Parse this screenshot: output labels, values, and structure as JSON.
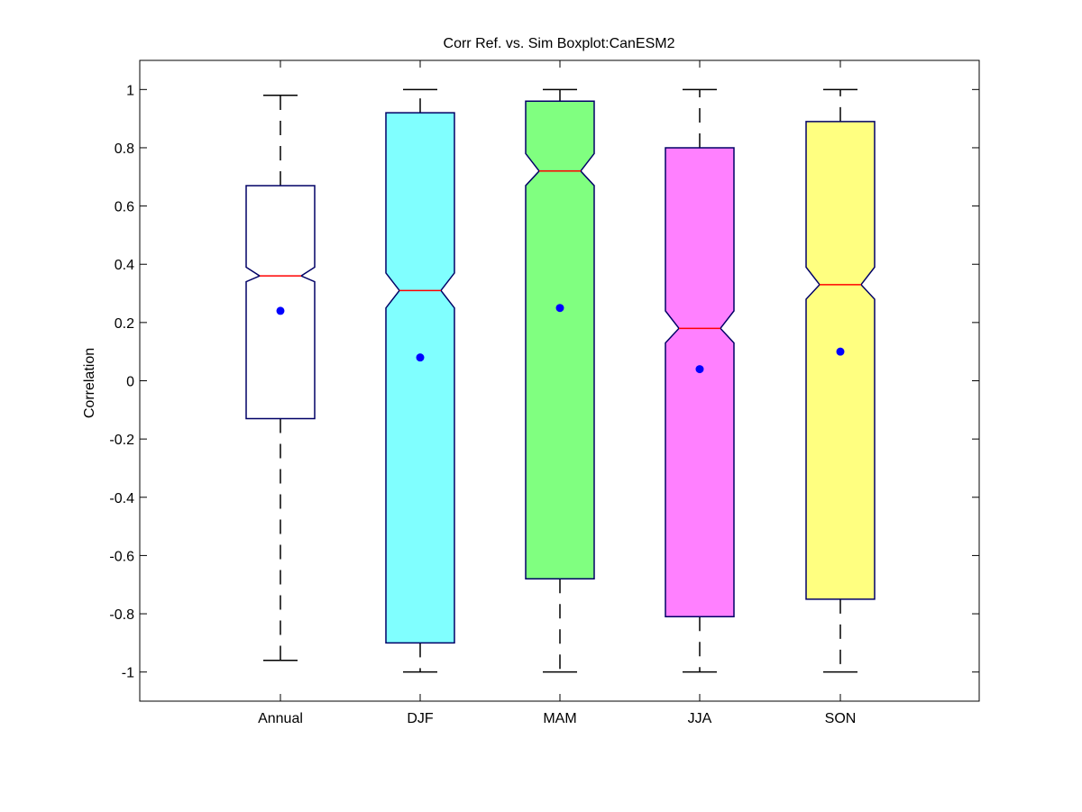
{
  "chart_data": {
    "type": "boxplot",
    "title": "Corr Ref. vs. Sim Boxplot:CanESM2",
    "xlabel": "",
    "ylabel": "Correlation",
    "ylim": [
      -1.1,
      1.1
    ],
    "yticks": [
      -1,
      -0.8,
      -0.6,
      -0.4,
      -0.2,
      0,
      0.2,
      0.4,
      0.6,
      0.8,
      1
    ],
    "ytick_labels": [
      "-1",
      "-0.8",
      "-0.6",
      "-0.4",
      "-0.2",
      "0",
      "0.2",
      "0.4",
      "0.6",
      "0.8",
      "1"
    ],
    "categories": [
      "Annual",
      "DJF",
      "MAM",
      "JJA",
      "SON"
    ],
    "boxes": [
      {
        "category": "Annual",
        "whisker_low": -0.96,
        "q1": -0.13,
        "median": 0.36,
        "q3": 0.67,
        "whisker_high": 0.98,
        "notch_low": 0.34,
        "notch_high": 0.39,
        "mean": 0.24,
        "fill": "#ffffff"
      },
      {
        "category": "DJF",
        "whisker_low": -1.0,
        "q1": -0.9,
        "median": 0.31,
        "q3": 0.92,
        "whisker_high": 1.0,
        "notch_low": 0.25,
        "notch_high": 0.37,
        "mean": 0.08,
        "fill": "#80ffff"
      },
      {
        "category": "MAM",
        "whisker_low": -1.0,
        "q1": -0.68,
        "median": 0.72,
        "q3": 0.96,
        "whisker_high": 1.0,
        "notch_low": 0.67,
        "notch_high": 0.78,
        "mean": 0.25,
        "fill": "#80ff80"
      },
      {
        "category": "JJA",
        "whisker_low": -1.0,
        "q1": -0.81,
        "median": 0.18,
        "q3": 0.8,
        "whisker_high": 1.0,
        "notch_low": 0.13,
        "notch_high": 0.24,
        "mean": 0.04,
        "fill": "#ff80ff"
      },
      {
        "category": "SON",
        "whisker_low": -1.0,
        "q1": -0.75,
        "median": 0.33,
        "q3": 0.89,
        "whisker_high": 1.0,
        "notch_low": 0.28,
        "notch_high": 0.39,
        "mean": 0.1,
        "fill": "#ffff80"
      }
    ],
    "colors": {
      "box_edge": "#000066",
      "median": "#ff0000",
      "mean_marker": "#0000ff",
      "whisker": "#000000"
    },
    "grid": false,
    "legend": "none"
  }
}
